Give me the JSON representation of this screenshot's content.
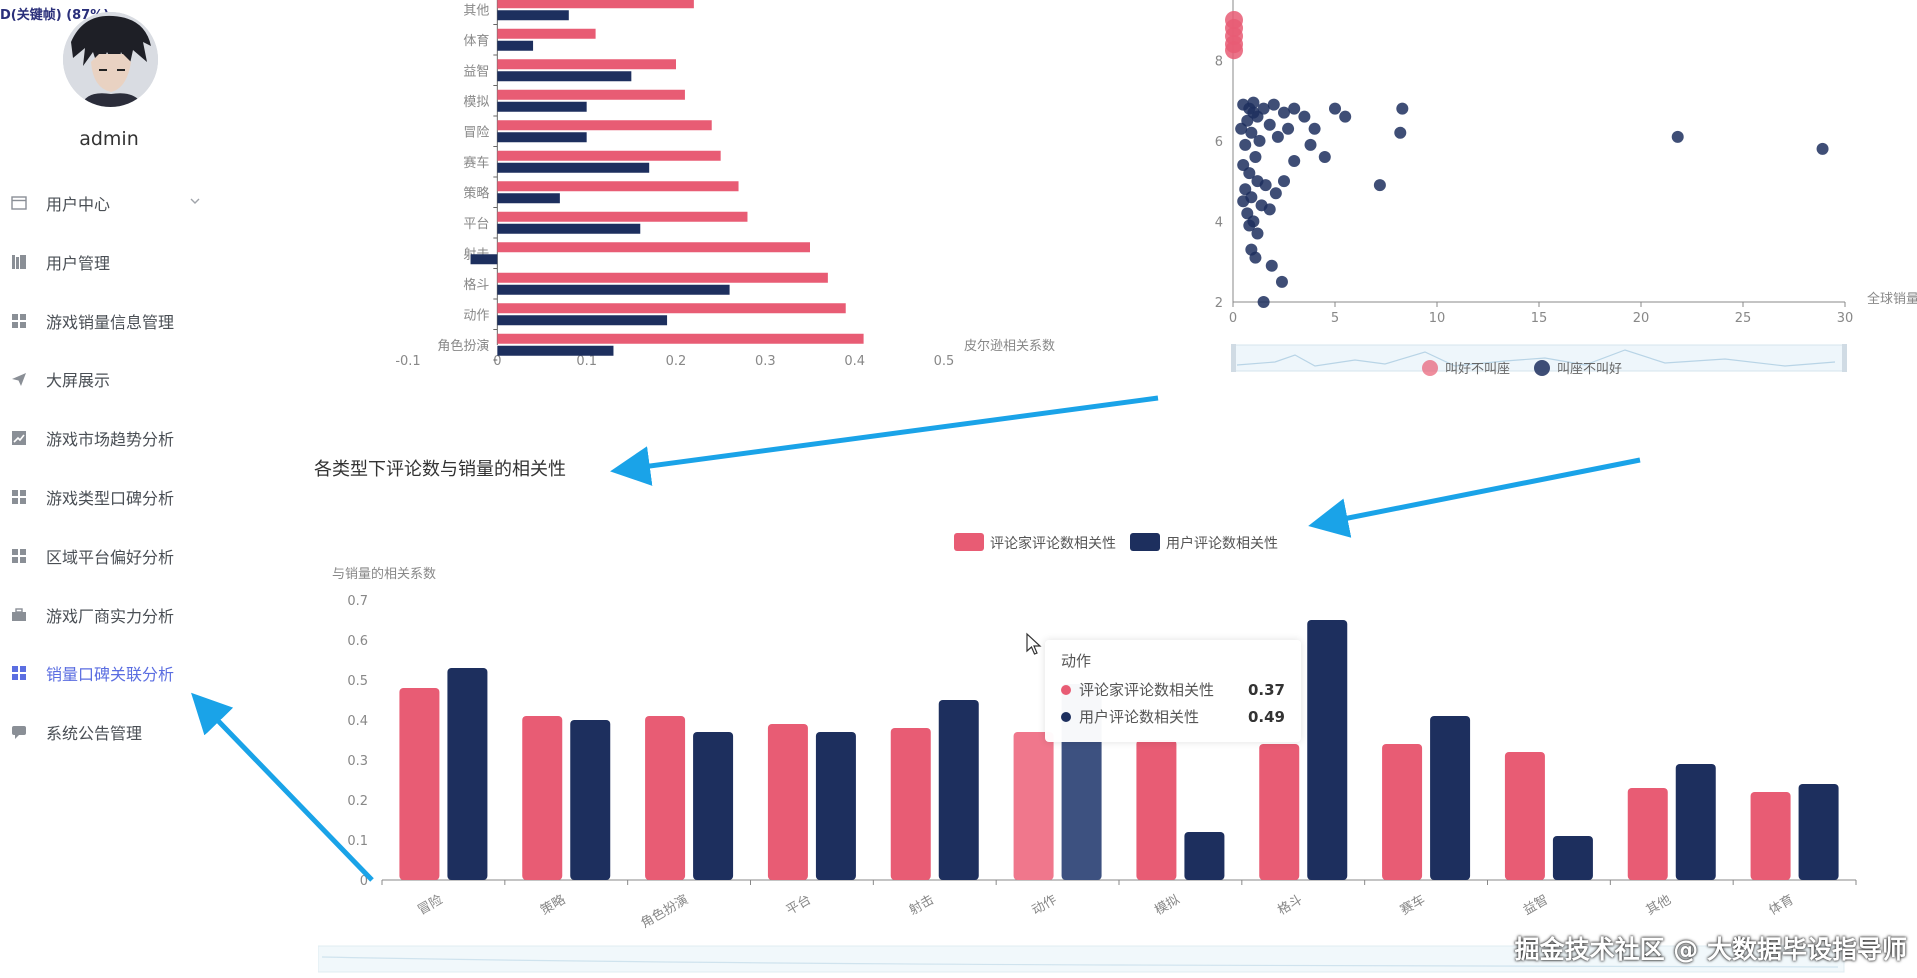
{
  "sidebar": {
    "badge": "D(关键帧) (87%)",
    "username": "admin",
    "items": [
      {
        "label": "用户中心",
        "icon": "window-icon",
        "expandable": true
      },
      {
        "label": "用户管理",
        "icon": "books-icon"
      },
      {
        "label": "游戏销量信息管理",
        "icon": "grid-icon"
      },
      {
        "label": "大屏展示",
        "icon": "paper-plane-icon"
      },
      {
        "label": "游戏市场趋势分析",
        "icon": "trend-chart-icon"
      },
      {
        "label": "游戏类型口碑分析",
        "icon": "grid-icon"
      },
      {
        "label": "区域平台偏好分析",
        "icon": "grid-icon"
      },
      {
        "label": "游戏厂商实力分析",
        "icon": "briefcase-icon"
      },
      {
        "label": "销量口碑关联分析",
        "icon": "grid-icon",
        "active": true
      },
      {
        "label": "系统公告管理",
        "icon": "message-icon"
      }
    ]
  },
  "colors": {
    "pink": "#e85c74",
    "navy": "#1d2f5e",
    "active": "#5b6ee1",
    "arrow": "#1aa3e8"
  },
  "chart_data": [
    {
      "type": "bar",
      "orientation": "horizontal",
      "categories": [
        "其他",
        "体育",
        "益智",
        "模拟",
        "冒险",
        "赛车",
        "策略",
        "平台",
        "射击",
        "格斗",
        "动作",
        "角色扮演"
      ],
      "series": [
        {
          "values": [
            0.22,
            0.11,
            0.2,
            0.21,
            0.24,
            0.25,
            0.27,
            0.28,
            0.35,
            0.37,
            0.39,
            0.41
          ]
        },
        {
          "values": [
            0.08,
            0.04,
            0.15,
            0.1,
            0.1,
            0.17,
            0.07,
            0.16,
            -0.03,
            0.26,
            0.19,
            0.13
          ]
        }
      ],
      "x_ticks": [
        "-0.1",
        "0",
        "0.1",
        "0.2",
        "0.3",
        "0.4",
        "0.5"
      ],
      "xlim": [
        -0.1,
        0.5
      ],
      "xlabel": "皮尔逊相关系数"
    },
    {
      "type": "scatter",
      "xlabel": "全球销量",
      "xlim": [
        0,
        30
      ],
      "ylim": [
        2,
        9
      ],
      "x_ticks": [
        "0",
        "5",
        "10",
        "15",
        "20",
        "25",
        "30"
      ],
      "y_ticks": [
        "2",
        "4",
        "6",
        "8"
      ],
      "legend": [
        "叫好不叫座",
        "叫座不叫好"
      ],
      "legend_position": "bottom",
      "series": [
        {
          "name": "叫好不叫座",
          "points": [
            [
              0.05,
              9.0
            ],
            [
              0.05,
              8.8
            ],
            [
              0.05,
              8.6
            ],
            [
              0.05,
              8.4
            ],
            [
              0.05,
              8.25
            ]
          ]
        },
        {
          "name": "叫座不叫好",
          "points": [
            [
              0.5,
              6.9
            ],
            [
              0.8,
              6.8
            ],
            [
              1.0,
              6.7
            ],
            [
              1.2,
              6.6
            ],
            [
              0.7,
              6.5
            ],
            [
              1.5,
              6.8
            ],
            [
              2.0,
              6.9
            ],
            [
              2.5,
              6.7
            ],
            [
              3.0,
              6.8
            ],
            [
              3.5,
              6.6
            ],
            [
              0.4,
              6.3
            ],
            [
              0.9,
              6.2
            ],
            [
              1.3,
              6.0
            ],
            [
              1.8,
              6.4
            ],
            [
              2.2,
              6.1
            ],
            [
              0.6,
              5.9
            ],
            [
              1.1,
              5.6
            ],
            [
              0.5,
              5.4
            ],
            [
              0.8,
              5.2
            ],
            [
              1.2,
              5.0
            ],
            [
              0.6,
              4.8
            ],
            [
              0.9,
              4.6
            ],
            [
              1.4,
              4.4
            ],
            [
              0.7,
              4.2
            ],
            [
              1.0,
              4.0
            ],
            [
              1.6,
              4.9
            ],
            [
              2.1,
              4.7
            ],
            [
              2.5,
              5.0
            ],
            [
              0.5,
              4.5
            ],
            [
              1.8,
              4.3
            ],
            [
              0.8,
              3.9
            ],
            [
              1.2,
              3.7
            ],
            [
              0.9,
              3.3
            ],
            [
              1.1,
              3.1
            ],
            [
              1.9,
              2.9
            ],
            [
              2.4,
              2.5
            ],
            [
              1.5,
              2.0
            ],
            [
              4.0,
              6.3
            ],
            [
              4.5,
              5.6
            ],
            [
              5.0,
              6.8
            ],
            [
              5.5,
              6.6
            ],
            [
              3.0,
              5.5
            ],
            [
              3.8,
              5.9
            ],
            [
              2.7,
              6.3
            ],
            [
              7.2,
              4.9
            ],
            [
              8.3,
              6.8
            ],
            [
              8.2,
              6.2
            ],
            [
              21.8,
              6.1
            ],
            [
              28.9,
              5.8
            ],
            [
              1.0,
              6.95
            ]
          ]
        }
      ]
    },
    {
      "type": "bar",
      "title": "各类型下评论数与销量的相关性",
      "ylabel": "与销量的相关系数",
      "ylim": [
        0,
        0.7
      ],
      "y_ticks": [
        "0",
        "0.1",
        "0.2",
        "0.3",
        "0.4",
        "0.5",
        "0.6",
        "0.7"
      ],
      "categories": [
        "冒险",
        "策略",
        "角色扮演",
        "平台",
        "射击",
        "动作",
        "模拟",
        "格斗",
        "赛车",
        "益智",
        "其他",
        "体育"
      ],
      "legend_position": "top",
      "series": [
        {
          "name": "评论家评论数相关性",
          "values": [
            0.48,
            0.41,
            0.41,
            0.39,
            0.38,
            0.37,
            0.35,
            0.34,
            0.34,
            0.32,
            0.23,
            0.22
          ]
        },
        {
          "name": "用户评论数相关性",
          "values": [
            0.53,
            0.4,
            0.37,
            0.37,
            0.45,
            0.49,
            0.12,
            0.65,
            0.41,
            0.11,
            0.29,
            0.24
          ]
        }
      ],
      "tooltip": {
        "title": "动作",
        "rows": [
          {
            "name": "评论家评论数相关性",
            "value": "0.37"
          },
          {
            "name": "用户评论数相关性",
            "value": "0.49"
          }
        ]
      }
    }
  ],
  "watermark": "掘金技术社区 @ 大数据毕设指导师"
}
